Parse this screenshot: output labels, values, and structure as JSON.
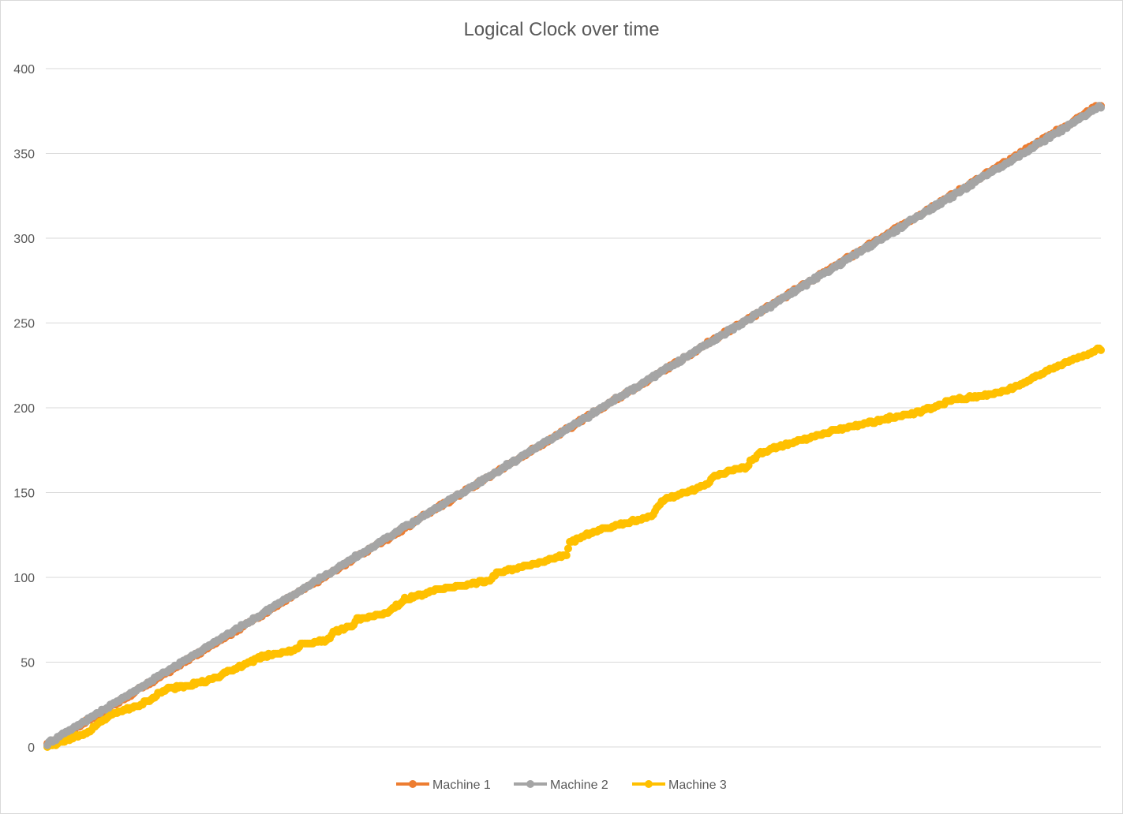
{
  "chart_data": {
    "type": "line",
    "title": "Logical Clock over time",
    "xlabel": "",
    "ylabel": "",
    "ylim": [
      0,
      400
    ],
    "yticks": [
      "0",
      "50",
      "100",
      "150",
      "200",
      "250",
      "300",
      "350",
      "400"
    ],
    "grid": true,
    "legend_position": "bottom",
    "x_points": 620,
    "series": [
      {
        "name": "Machine 1",
        "color": "#ED7D31",
        "keypoints": [
          [
            0,
            1
          ],
          [
            619,
            379
          ]
        ]
      },
      {
        "name": "Machine 2",
        "color": "#A5A5A5",
        "keypoints": [
          [
            0,
            2
          ],
          [
            619,
            378
          ]
        ]
      },
      {
        "name": "Machine 3",
        "color": "#FFC000",
        "keypoints": [
          [
            0,
            0
          ],
          [
            25,
            9
          ],
          [
            28,
            13
          ],
          [
            40,
            20
          ],
          [
            55,
            25
          ],
          [
            70,
            34
          ],
          [
            95,
            39
          ],
          [
            110,
            46
          ],
          [
            125,
            53
          ],
          [
            145,
            57
          ],
          [
            150,
            61
          ],
          [
            165,
            63
          ],
          [
            168,
            68
          ],
          [
            180,
            71
          ],
          [
            182,
            75
          ],
          [
            200,
            79
          ],
          [
            210,
            87
          ],
          [
            230,
            93
          ],
          [
            260,
            98
          ],
          [
            265,
            103
          ],
          [
            285,
            108
          ],
          [
            305,
            113
          ],
          [
            307,
            121
          ],
          [
            325,
            128
          ],
          [
            355,
            136
          ],
          [
            362,
            146
          ],
          [
            375,
            150
          ],
          [
            388,
            155
          ],
          [
            392,
            160
          ],
          [
            410,
            165
          ],
          [
            418,
            173
          ],
          [
            440,
            180
          ],
          [
            460,
            186
          ],
          [
            490,
            193
          ],
          [
            510,
            197
          ],
          [
            520,
            200
          ],
          [
            530,
            204
          ],
          [
            560,
            209
          ],
          [
            570,
            213
          ],
          [
            590,
            223
          ],
          [
            619,
            235
          ]
        ]
      }
    ]
  }
}
